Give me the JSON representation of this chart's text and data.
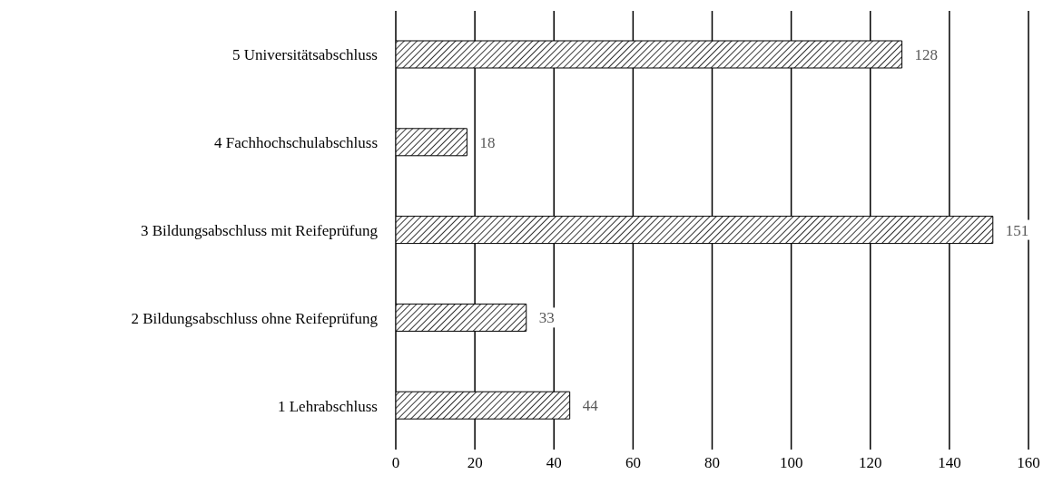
{
  "chart_data": {
    "type": "bar",
    "orientation": "horizontal",
    "categories": [
      "5 Universitätsabschluss",
      "4 Fachhochschulabschluss",
      "3 Bildungsabschluss mit Reifeprüfung",
      "2 Bildungsabschluss ohne Reifeprüfung",
      "1 Lehrabschluss"
    ],
    "values": [
      128,
      18,
      151,
      33,
      44
    ],
    "color": "#000000",
    "xlim": [
      0,
      160
    ],
    "xticks": [
      0,
      20,
      40,
      60,
      80,
      100,
      120,
      140,
      160
    ],
    "grid": "x",
    "data_labels": true
  }
}
